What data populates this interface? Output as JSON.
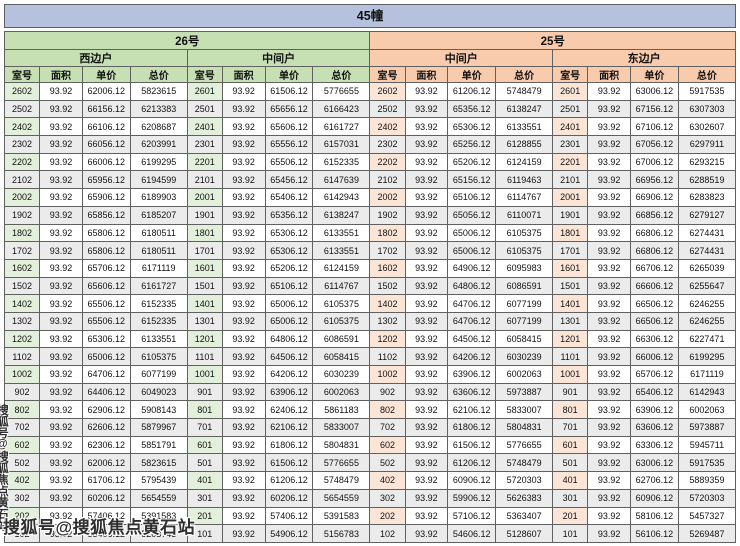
{
  "title": "45幢",
  "watermark": {
    "text": "搜狐号@搜狐焦点黄石站"
  },
  "colors": {
    "title_bg": "#b6c1de",
    "green_header": "#c6e0b4",
    "green_light": "#e2efda",
    "orange_header": "#f8cbad",
    "orange_light": "#fbe5d6",
    "zebra": "#ebebeb",
    "border": "#606060"
  },
  "table": {
    "buildings": [
      {
        "label": "26号",
        "span": 2,
        "theme": "green"
      },
      {
        "label": "25号",
        "span": 2,
        "theme": "orange"
      }
    ],
    "groups": [
      {
        "building": "26号",
        "unit": "西边户",
        "theme": "green"
      },
      {
        "building": "26号",
        "unit": "中间户",
        "theme": "green"
      },
      {
        "building": "25号",
        "unit": "中间户",
        "theme": "orange"
      },
      {
        "building": "25号",
        "unit": "东边户",
        "theme": "orange"
      }
    ],
    "columns": [
      "室号",
      "面积",
      "单价",
      "总价"
    ],
    "col_widths": [
      "4.8%",
      "5.85%",
      "6.55%",
      "7.8%"
    ],
    "rows": [
      [
        [
          "2602",
          "93.92",
          "62006.12",
          "5823615"
        ],
        [
          "2601",
          "93.92",
          "61506.12",
          "5776655"
        ],
        [
          "2602",
          "93.92",
          "61206.12",
          "5748479"
        ],
        [
          "2601",
          "93.92",
          "63006.12",
          "5917535"
        ]
      ],
      [
        [
          "2502",
          "93.92",
          "66156.12",
          "6213383"
        ],
        [
          "2501",
          "93.92",
          "65656.12",
          "6166423"
        ],
        [
          "2502",
          "93.92",
          "65356.12",
          "6138247"
        ],
        [
          "2501",
          "93.92",
          "67156.12",
          "6307303"
        ]
      ],
      [
        [
          "2402",
          "93.92",
          "66106.12",
          "6208687"
        ],
        [
          "2401",
          "93.92",
          "65606.12",
          "6161727"
        ],
        [
          "2402",
          "93.92",
          "65306.12",
          "6133551"
        ],
        [
          "2401",
          "93.92",
          "67106.12",
          "6302607"
        ]
      ],
      [
        [
          "2302",
          "93.92",
          "66056.12",
          "6203991"
        ],
        [
          "2301",
          "93.92",
          "65556.12",
          "6157031"
        ],
        [
          "2302",
          "93.92",
          "65256.12",
          "6128855"
        ],
        [
          "2301",
          "93.92",
          "67056.12",
          "6297911"
        ]
      ],
      [
        [
          "2202",
          "93.92",
          "66006.12",
          "6199295"
        ],
        [
          "2201",
          "93.92",
          "65506.12",
          "6152335"
        ],
        [
          "2202",
          "93.92",
          "65206.12",
          "6124159"
        ],
        [
          "2201",
          "93.92",
          "67006.12",
          "6293215"
        ]
      ],
      [
        [
          "2102",
          "93.92",
          "65956.12",
          "6194599"
        ],
        [
          "2101",
          "93.92",
          "65456.12",
          "6147639"
        ],
        [
          "2102",
          "93.92",
          "65156.12",
          "6119463"
        ],
        [
          "2101",
          "93.92",
          "66956.12",
          "6288519"
        ]
      ],
      [
        [
          "2002",
          "93.92",
          "65906.12",
          "6189903"
        ],
        [
          "2001",
          "93.92",
          "65406.12",
          "6142943"
        ],
        [
          "2002",
          "93.92",
          "65106.12",
          "6114767"
        ],
        [
          "2001",
          "93.92",
          "66906.12",
          "6283823"
        ]
      ],
      [
        [
          "1902",
          "93.92",
          "65856.12",
          "6185207"
        ],
        [
          "1901",
          "93.92",
          "65356.12",
          "6138247"
        ],
        [
          "1902",
          "93.92",
          "65056.12",
          "6110071"
        ],
        [
          "1901",
          "93.92",
          "66856.12",
          "6279127"
        ]
      ],
      [
        [
          "1802",
          "93.92",
          "65806.12",
          "6180511"
        ],
        [
          "1801",
          "93.92",
          "65306.12",
          "6133551"
        ],
        [
          "1802",
          "93.92",
          "65006.12",
          "6105375"
        ],
        [
          "1801",
          "93.92",
          "66806.12",
          "6274431"
        ]
      ],
      [
        [
          "1702",
          "93.92",
          "65806.12",
          "6180511"
        ],
        [
          "1701",
          "93.92",
          "65306.12",
          "6133551"
        ],
        [
          "1702",
          "93.92",
          "65006.12",
          "6105375"
        ],
        [
          "1701",
          "93.92",
          "66806.12",
          "6274431"
        ]
      ],
      [
        [
          "1602",
          "93.92",
          "65706.12",
          "6171119"
        ],
        [
          "1601",
          "93.92",
          "65206.12",
          "6124159"
        ],
        [
          "1602",
          "93.92",
          "64906.12",
          "6095983"
        ],
        [
          "1601",
          "93.92",
          "66706.12",
          "6265039"
        ]
      ],
      [
        [
          "1502",
          "93.92",
          "65606.12",
          "6161727"
        ],
        [
          "1501",
          "93.92",
          "65106.12",
          "6114767"
        ],
        [
          "1502",
          "93.92",
          "64806.12",
          "6086591"
        ],
        [
          "1501",
          "93.92",
          "66606.12",
          "6255647"
        ]
      ],
      [
        [
          "1402",
          "93.92",
          "65506.12",
          "6152335"
        ],
        [
          "1401",
          "93.92",
          "65006.12",
          "6105375"
        ],
        [
          "1402",
          "93.92",
          "64706.12",
          "6077199"
        ],
        [
          "1401",
          "93.92",
          "66506.12",
          "6246255"
        ]
      ],
      [
        [
          "1302",
          "93.92",
          "65506.12",
          "6152335"
        ],
        [
          "1301",
          "93.92",
          "65006.12",
          "6105375"
        ],
        [
          "1302",
          "93.92",
          "64706.12",
          "6077199"
        ],
        [
          "1301",
          "93.92",
          "66506.12",
          "6246255"
        ]
      ],
      [
        [
          "1202",
          "93.92",
          "65306.12",
          "6133551"
        ],
        [
          "1201",
          "93.92",
          "64806.12",
          "6086591"
        ],
        [
          "1202",
          "93.92",
          "64506.12",
          "6058415"
        ],
        [
          "1201",
          "93.92",
          "66306.12",
          "6227471"
        ]
      ],
      [
        [
          "1102",
          "93.92",
          "65006.12",
          "6105375"
        ],
        [
          "1101",
          "93.92",
          "64506.12",
          "6058415"
        ],
        [
          "1102",
          "93.92",
          "64206.12",
          "6030239"
        ],
        [
          "1101",
          "93.92",
          "66006.12",
          "6199295"
        ]
      ],
      [
        [
          "1002",
          "93.92",
          "64706.12",
          "6077199"
        ],
        [
          "1001",
          "93.92",
          "64206.12",
          "6030239"
        ],
        [
          "1002",
          "93.92",
          "63906.12",
          "6002063"
        ],
        [
          "1001",
          "93.92",
          "65706.12",
          "6171119"
        ]
      ],
      [
        [
          "902",
          "93.92",
          "64406.12",
          "6049023"
        ],
        [
          "901",
          "93.92",
          "63906.12",
          "6002063"
        ],
        [
          "902",
          "93.92",
          "63606.12",
          "5973887"
        ],
        [
          "901",
          "93.92",
          "65406.12",
          "6142943"
        ]
      ],
      [
        [
          "802",
          "93.92",
          "62906.12",
          "5908143"
        ],
        [
          "801",
          "93.92",
          "62406.12",
          "5861183"
        ],
        [
          "802",
          "93.92",
          "62106.12",
          "5833007"
        ],
        [
          "801",
          "93.92",
          "63906.12",
          "6002063"
        ]
      ],
      [
        [
          "702",
          "93.92",
          "62606.12",
          "5879967"
        ],
        [
          "701",
          "93.92",
          "62106.12",
          "5833007"
        ],
        [
          "702",
          "93.92",
          "61806.12",
          "5804831"
        ],
        [
          "701",
          "93.92",
          "63606.12",
          "5973887"
        ]
      ],
      [
        [
          "602",
          "93.92",
          "62306.12",
          "5851791"
        ],
        [
          "601",
          "93.92",
          "61806.12",
          "5804831"
        ],
        [
          "602",
          "93.92",
          "61506.12",
          "5776655"
        ],
        [
          "601",
          "93.92",
          "63306.12",
          "5945711"
        ]
      ],
      [
        [
          "502",
          "93.92",
          "62006.12",
          "5823615"
        ],
        [
          "501",
          "93.92",
          "61506.12",
          "5776655"
        ],
        [
          "502",
          "93.92",
          "61206.12",
          "5748479"
        ],
        [
          "501",
          "93.92",
          "63006.12",
          "5917535"
        ]
      ],
      [
        [
          "402",
          "93.92",
          "61706.12",
          "5795439"
        ],
        [
          "401",
          "93.92",
          "61206.12",
          "5748479"
        ],
        [
          "402",
          "93.92",
          "60906.12",
          "5720303"
        ],
        [
          "401",
          "93.92",
          "62706.12",
          "5889359"
        ]
      ],
      [
        [
          "302",
          "93.92",
          "60206.12",
          "5654559"
        ],
        [
          "301",
          "93.92",
          "60206.12",
          "5654559"
        ],
        [
          "302",
          "93.92",
          "59906.12",
          "5626383"
        ],
        [
          "301",
          "93.92",
          "60906.12",
          "5720303"
        ]
      ],
      [
        [
          "202",
          "93.92",
          "57406.12",
          "5391583"
        ],
        [
          "201",
          "93.92",
          "57406.12",
          "5391583"
        ],
        [
          "202",
          "93.92",
          "57106.12",
          "5363407"
        ],
        [
          "201",
          "93.92",
          "58106.12",
          "5457327"
        ]
      ],
      [
        [
          "102",
          "93.92",
          "55406.12",
          "5203743"
        ],
        [
          "101",
          "93.92",
          "54906.12",
          "5156783"
        ],
        [
          "102",
          "93.92",
          "54606.12",
          "5128607"
        ],
        [
          "101",
          "93.92",
          "56106.12",
          "5269487"
        ]
      ]
    ]
  }
}
